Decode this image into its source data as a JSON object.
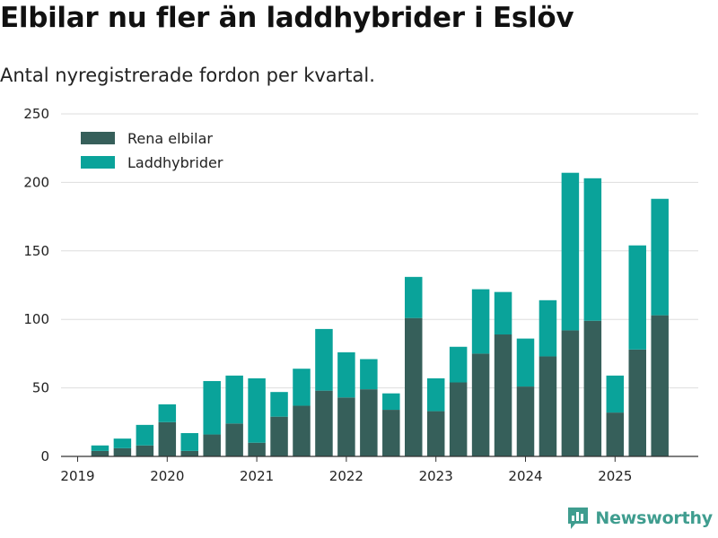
{
  "header": {
    "title": "Elbilar nu fler än laddhybrider i Eslöv",
    "subtitle": "Antal nyregistrerade fordon per kvartal."
  },
  "brand": {
    "name": "Newsworthy",
    "icon": "newsworthy-logo-icon"
  },
  "colors": {
    "elbilar": "#365f5a",
    "laddhybrider": "#0aa39a",
    "grid": "#dddddd",
    "axis": "#333333"
  },
  "chart_data": {
    "type": "bar",
    "stacked": true,
    "title": "Elbilar nu fler än laddhybrider i Eslöv",
    "subtitle": "Antal nyregistrerade fordon per kvartal.",
    "xlabel": "",
    "ylabel": "",
    "ylim": [
      0,
      250
    ],
    "yticks": [
      0,
      50,
      100,
      150,
      200,
      250
    ],
    "xticks": [
      "2019",
      "2020",
      "2021",
      "2022",
      "2023",
      "2024",
      "2025"
    ],
    "legend_position": "top-left",
    "categories": [
      "2019 Q2",
      "2019 Q3",
      "2019 Q4",
      "2020 Q1",
      "2020 Q2",
      "2020 Q3",
      "2020 Q4",
      "2021 Q1",
      "2021 Q2",
      "2021 Q3",
      "2021 Q4",
      "2022 Q1",
      "2022 Q2",
      "2022 Q3",
      "2022 Q4",
      "2023 Q1",
      "2023 Q2",
      "2023 Q3",
      "2023 Q4",
      "2024 Q1",
      "2024 Q2",
      "2024 Q3",
      "2024 Q4",
      "2025 Q1",
      "2025 Q2",
      "2025 Q3"
    ],
    "series": [
      {
        "name": "Rena elbilar",
        "values": [
          4,
          6,
          8,
          25,
          4,
          16,
          24,
          10,
          29,
          37,
          48,
          43,
          49,
          34,
          101,
          33,
          54,
          75,
          89,
          51,
          73,
          92,
          99,
          32,
          78,
          103
        ]
      },
      {
        "name": "Laddhybrider",
        "values": [
          4,
          7,
          15,
          13,
          13,
          39,
          35,
          47,
          18,
          27,
          45,
          33,
          22,
          12,
          30,
          24,
          26,
          47,
          31,
          35,
          41,
          115,
          104,
          27,
          76,
          85
        ]
      }
    ]
  }
}
